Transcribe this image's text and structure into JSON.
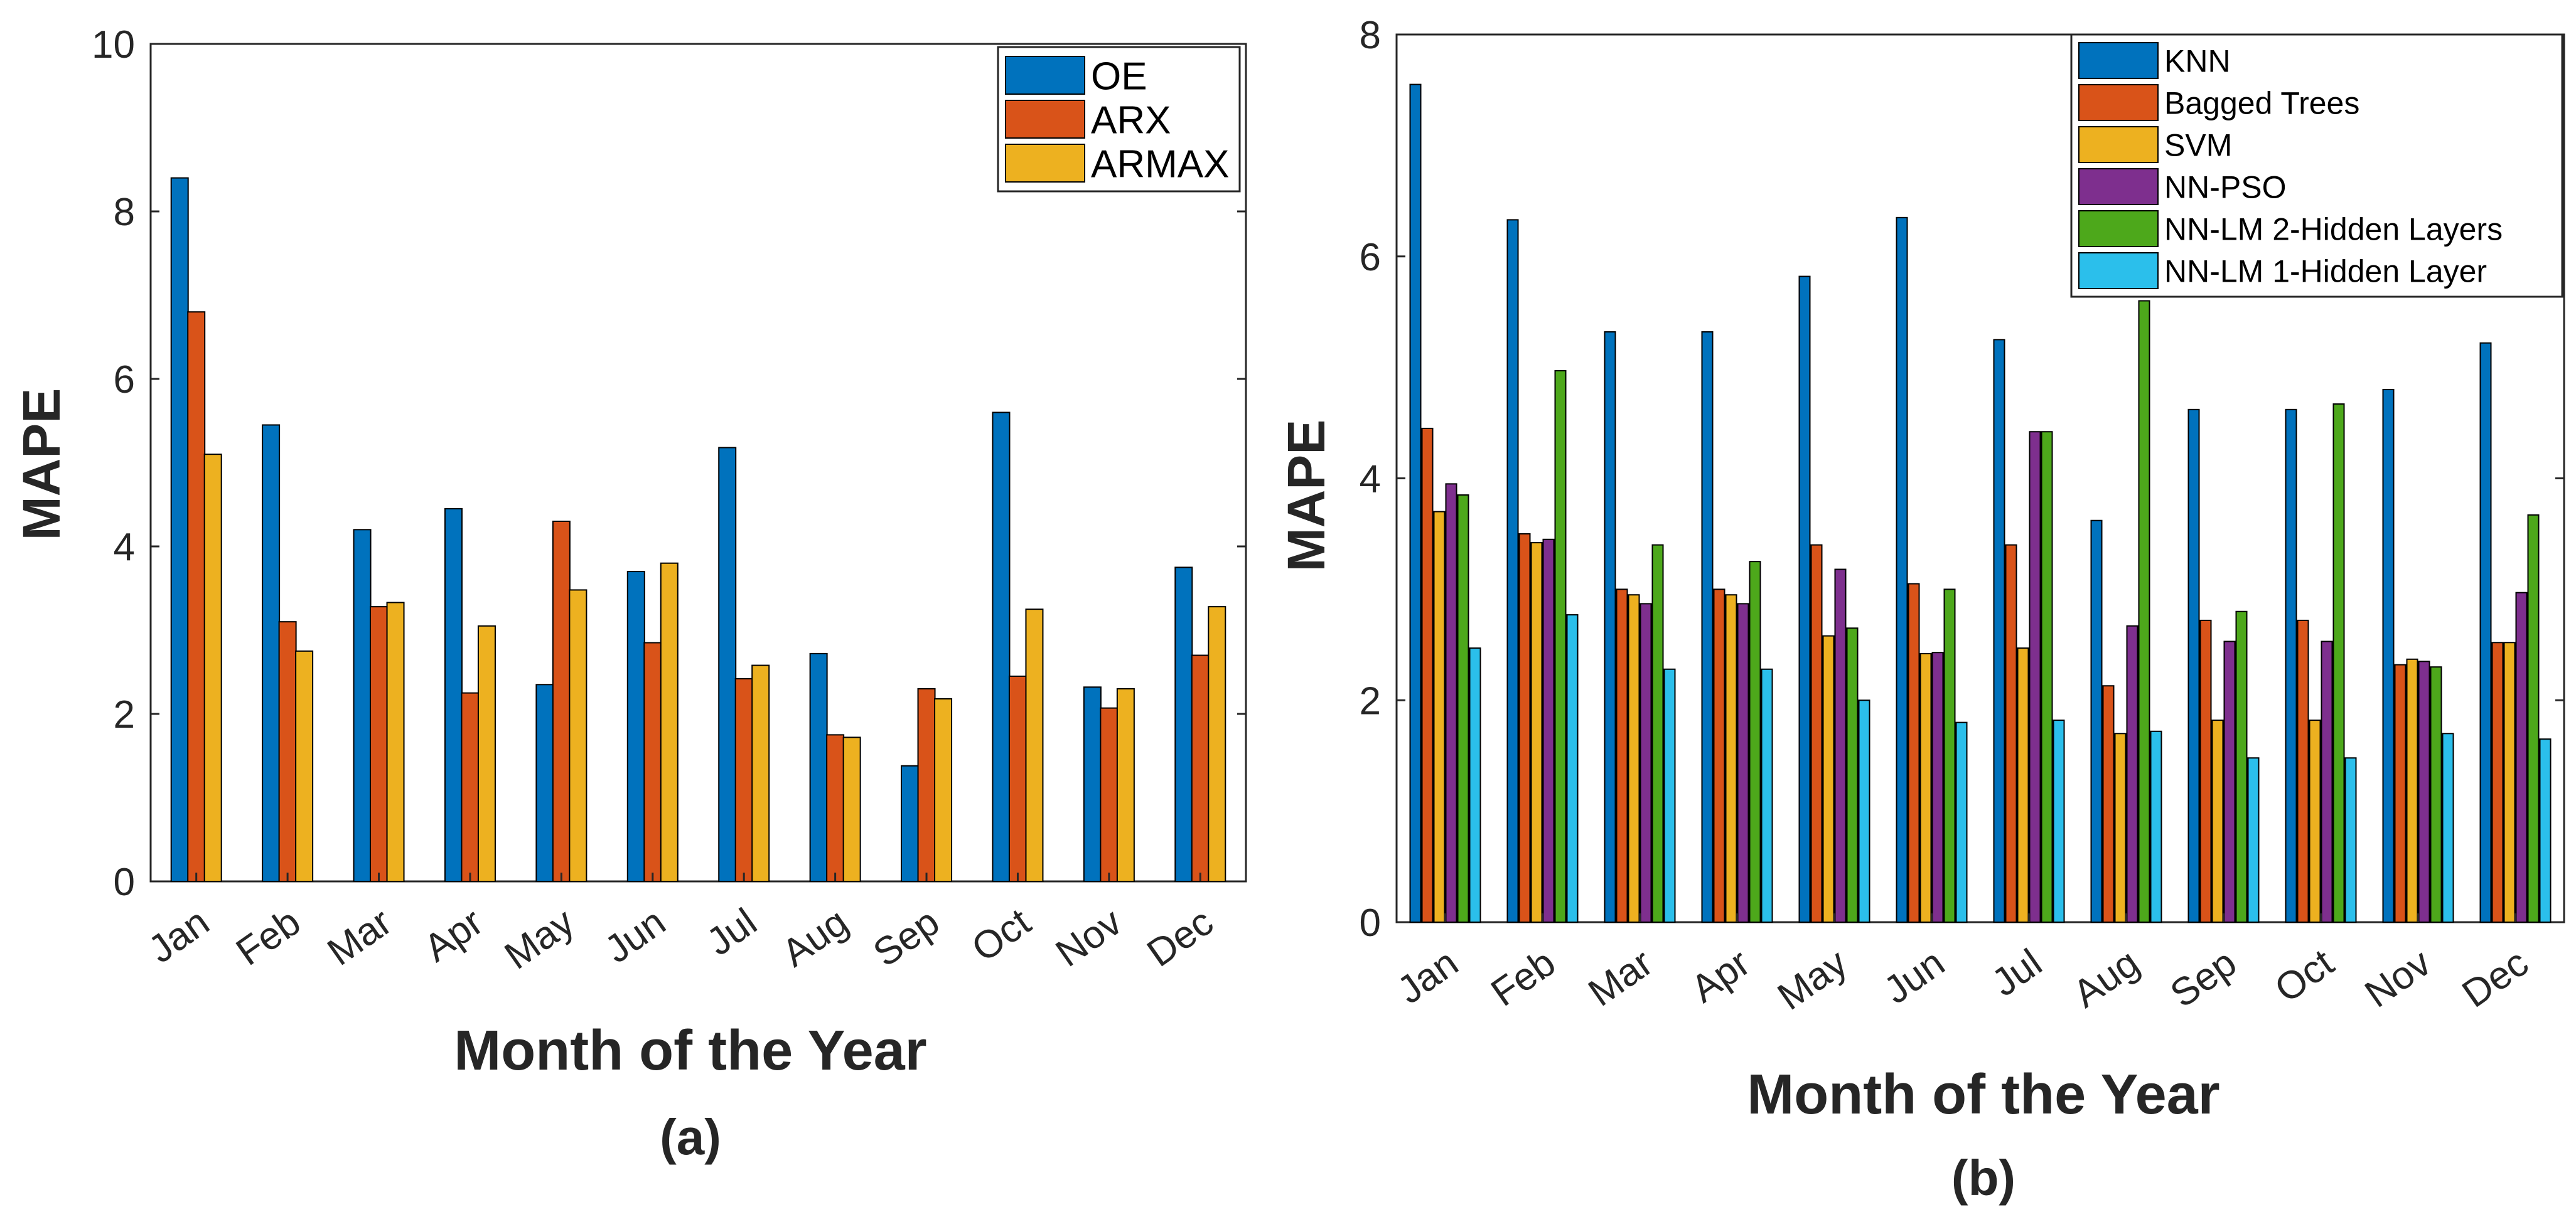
{
  "chart_data": [
    {
      "type": "bar",
      "panel_label": "(a)",
      "xlabel": "Month of the Year",
      "ylabel": "MAPE",
      "ylim": [
        0,
        10
      ],
      "yticks": [
        0,
        2,
        4,
        6,
        8,
        10
      ],
      "legend_position": "top-right",
      "categories": [
        "Jan",
        "Feb",
        "Mar",
        "Apr",
        "May",
        "Jun",
        "Jul",
        "Aug",
        "Sep",
        "Oct",
        "Nov",
        "Dec"
      ],
      "series": [
        {
          "name": "OE",
          "color": "#0072BD",
          "values": [
            8.4,
            5.45,
            4.2,
            4.45,
            2.35,
            3.7,
            5.18,
            2.72,
            1.38,
            5.6,
            2.32,
            3.75
          ]
        },
        {
          "name": "ARX",
          "color": "#D95319",
          "values": [
            6.8,
            3.1,
            3.28,
            2.25,
            4.3,
            2.85,
            2.42,
            1.75,
            2.3,
            2.45,
            2.07,
            2.7
          ]
        },
        {
          "name": "ARMAX",
          "color": "#EDB120",
          "values": [
            5.1,
            2.75,
            3.33,
            3.05,
            3.48,
            3.8,
            2.58,
            1.72,
            2.18,
            3.25,
            2.3,
            3.28
          ]
        }
      ]
    },
    {
      "type": "bar",
      "panel_label": "(b)",
      "xlabel": "Month of the Year",
      "ylabel": "MAPE",
      "ylim": [
        0,
        8
      ],
      "yticks": [
        0,
        2,
        4,
        6,
        8
      ],
      "legend_position": "top-right",
      "categories": [
        "Jan",
        "Feb",
        "Mar",
        "Apr",
        "May",
        "Jun",
        "Jul",
        "Aug",
        "Sep",
        "Oct",
        "Nov",
        "Dec"
      ],
      "series": [
        {
          "name": "KNN",
          "color": "#0072BD",
          "values": [
            7.55,
            6.33,
            5.32,
            5.32,
            5.82,
            6.35,
            5.25,
            3.62,
            4.62,
            4.62,
            4.8,
            5.22
          ]
        },
        {
          "name": "Bagged Trees",
          "color": "#D95319",
          "values": [
            4.45,
            3.5,
            3.0,
            3.0,
            3.4,
            3.05,
            3.4,
            2.13,
            2.72,
            2.72,
            2.32,
            2.52
          ]
        },
        {
          "name": "SVM",
          "color": "#EDB120",
          "values": [
            3.7,
            3.42,
            2.95,
            2.95,
            2.58,
            2.42,
            2.47,
            1.7,
            1.82,
            1.82,
            2.37,
            2.52
          ]
        },
        {
          "name": "NN-PSO",
          "color": "#7E2F8E",
          "values": [
            3.95,
            3.45,
            2.87,
            2.87,
            3.18,
            2.43,
            4.42,
            2.67,
            2.53,
            2.53,
            2.35,
            2.97
          ]
        },
        {
          "name": "NN-LM 2-Hidden Layers",
          "color": "#4DA81B",
          "values": [
            3.85,
            4.97,
            3.4,
            3.25,
            2.65,
            3.0,
            4.42,
            5.6,
            2.8,
            4.67,
            2.3,
            3.67
          ]
        },
        {
          "name": "NN-LM 1-Hidden Layer",
          "color": "#2BBFEB",
          "values": [
            2.47,
            2.77,
            2.28,
            2.28,
            2.0,
            1.8,
            1.82,
            1.72,
            1.48,
            1.48,
            1.7,
            1.65
          ]
        }
      ]
    }
  ]
}
